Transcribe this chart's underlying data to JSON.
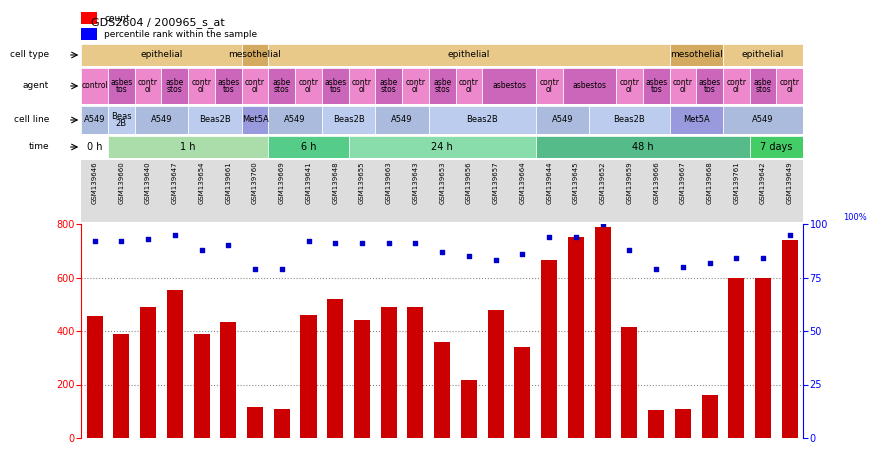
{
  "title": "GDS2604 / 200965_s_at",
  "samples": [
    "GSM139646",
    "GSM139660",
    "GSM139640",
    "GSM139647",
    "GSM139654",
    "GSM139661",
    "GSM139760",
    "GSM139669",
    "GSM139641",
    "GSM139648",
    "GSM139655",
    "GSM139663",
    "GSM139643",
    "GSM139653",
    "GSM139656",
    "GSM139657",
    "GSM139664",
    "GSM139644",
    "GSM139645",
    "GSM139652",
    "GSM139659",
    "GSM139666",
    "GSM139667",
    "GSM139668",
    "GSM139761",
    "GSM139642",
    "GSM139649"
  ],
  "counts": [
    457,
    390,
    490,
    555,
    390,
    435,
    115,
    110,
    460,
    520,
    440,
    490,
    490,
    360,
    215,
    480,
    340,
    665,
    750,
    790,
    415,
    105,
    110,
    160,
    600,
    600,
    740
  ],
  "percentile_ranks": [
    92,
    92,
    93,
    95,
    88,
    90,
    79,
    79,
    92,
    91,
    91,
    91,
    91,
    87,
    85,
    83,
    86,
    94,
    94,
    100,
    88,
    79,
    80,
    82,
    84,
    84,
    95
  ],
  "time_groups": [
    {
      "label": "0 h",
      "start": 0,
      "end": 1,
      "color": "#ffffff"
    },
    {
      "label": "1 h",
      "start": 1,
      "end": 7,
      "color": "#aaddaa"
    },
    {
      "label": "6 h",
      "start": 7,
      "end": 10,
      "color": "#55cc88"
    },
    {
      "label": "24 h",
      "start": 10,
      "end": 17,
      "color": "#88ddaa"
    },
    {
      "label": "48 h",
      "start": 17,
      "end": 25,
      "color": "#55bb88"
    },
    {
      "label": "7 days",
      "start": 25,
      "end": 27,
      "color": "#44cc66"
    }
  ],
  "cell_line_groups": [
    {
      "label": "A549",
      "start": 0,
      "end": 1,
      "color": "#aabbdd"
    },
    {
      "label": "Beas\n2B",
      "start": 1,
      "end": 2,
      "color": "#bbccee"
    },
    {
      "label": "A549",
      "start": 2,
      "end": 4,
      "color": "#aabbdd"
    },
    {
      "label": "Beas2B",
      "start": 4,
      "end": 6,
      "color": "#bbccee"
    },
    {
      "label": "Met5A",
      "start": 6,
      "end": 7,
      "color": "#9999dd"
    },
    {
      "label": "A549",
      "start": 7,
      "end": 9,
      "color": "#aabbdd"
    },
    {
      "label": "Beas2B",
      "start": 9,
      "end": 11,
      "color": "#bbccee"
    },
    {
      "label": "A549",
      "start": 11,
      "end": 13,
      "color": "#aabbdd"
    },
    {
      "label": "Beas2B",
      "start": 13,
      "end": 17,
      "color": "#bbccee"
    },
    {
      "label": "A549",
      "start": 17,
      "end": 19,
      "color": "#aabbdd"
    },
    {
      "label": "Beas2B",
      "start": 19,
      "end": 22,
      "color": "#bbccee"
    },
    {
      "label": "Met5A",
      "start": 22,
      "end": 24,
      "color": "#9999dd"
    },
    {
      "label": "A549",
      "start": 24,
      "end": 27,
      "color": "#aabbdd"
    }
  ],
  "agent_groups": [
    {
      "label": "control",
      "start": 0,
      "end": 1,
      "color": "#ee88cc"
    },
    {
      "label": "asbes\ntos",
      "start": 1,
      "end": 2,
      "color": "#cc66bb"
    },
    {
      "label": "contr\nol",
      "start": 2,
      "end": 3,
      "color": "#ee88cc"
    },
    {
      "label": "asbe\nstos",
      "start": 3,
      "end": 4,
      "color": "#cc66bb"
    },
    {
      "label": "contr\nol",
      "start": 4,
      "end": 5,
      "color": "#ee88cc"
    },
    {
      "label": "asbes\ntos",
      "start": 5,
      "end": 6,
      "color": "#cc66bb"
    },
    {
      "label": "contr\nol",
      "start": 6,
      "end": 7,
      "color": "#ee88cc"
    },
    {
      "label": "asbe\nstos",
      "start": 7,
      "end": 8,
      "color": "#cc66bb"
    },
    {
      "label": "contr\nol",
      "start": 8,
      "end": 9,
      "color": "#ee88cc"
    },
    {
      "label": "asbes\ntos",
      "start": 9,
      "end": 10,
      "color": "#cc66bb"
    },
    {
      "label": "contr\nol",
      "start": 10,
      "end": 11,
      "color": "#ee88cc"
    },
    {
      "label": "asbe\nstos",
      "start": 11,
      "end": 12,
      "color": "#cc66bb"
    },
    {
      "label": "contr\nol",
      "start": 12,
      "end": 13,
      "color": "#ee88cc"
    },
    {
      "label": "asbe\nstos",
      "start": 13,
      "end": 14,
      "color": "#cc66bb"
    },
    {
      "label": "contr\nol",
      "start": 14,
      "end": 15,
      "color": "#ee88cc"
    },
    {
      "label": "asbestos",
      "start": 15,
      "end": 17,
      "color": "#cc66bb"
    },
    {
      "label": "contr\nol",
      "start": 17,
      "end": 18,
      "color": "#ee88cc"
    },
    {
      "label": "asbestos",
      "start": 18,
      "end": 20,
      "color": "#cc66bb"
    },
    {
      "label": "contr\nol",
      "start": 20,
      "end": 21,
      "color": "#ee88cc"
    },
    {
      "label": "asbes\ntos",
      "start": 21,
      "end": 22,
      "color": "#cc66bb"
    },
    {
      "label": "contr\nol",
      "start": 22,
      "end": 23,
      "color": "#ee88cc"
    },
    {
      "label": "asbes\ntos",
      "start": 23,
      "end": 24,
      "color": "#cc66bb"
    },
    {
      "label": "contr\nol",
      "start": 24,
      "end": 25,
      "color": "#ee88cc"
    },
    {
      "label": "asbe\nstos",
      "start": 25,
      "end": 26,
      "color": "#cc66bb"
    },
    {
      "label": "contr\nol",
      "start": 26,
      "end": 27,
      "color": "#ee88cc"
    }
  ],
  "cell_type_groups": [
    {
      "label": "epithelial",
      "start": 0,
      "end": 6,
      "color": "#e8c98a"
    },
    {
      "label": "mesothelial",
      "start": 6,
      "end": 7,
      "color": "#d4aa60"
    },
    {
      "label": "epithelial",
      "start": 7,
      "end": 22,
      "color": "#e8c98a"
    },
    {
      "label": "mesothelial",
      "start": 22,
      "end": 24,
      "color": "#d4aa60"
    },
    {
      "label": "epithelial",
      "start": 24,
      "end": 27,
      "color": "#e8c98a"
    }
  ],
  "bar_color": "#cc0000",
  "dot_color": "#0000cc",
  "ylim_left": [
    0,
    800
  ],
  "ylim_right": [
    0,
    100
  ],
  "yticks_left": [
    0,
    200,
    400,
    600,
    800
  ],
  "yticks_right": [
    0,
    25,
    50,
    75,
    100
  ],
  "bg_color": "#ffffff"
}
